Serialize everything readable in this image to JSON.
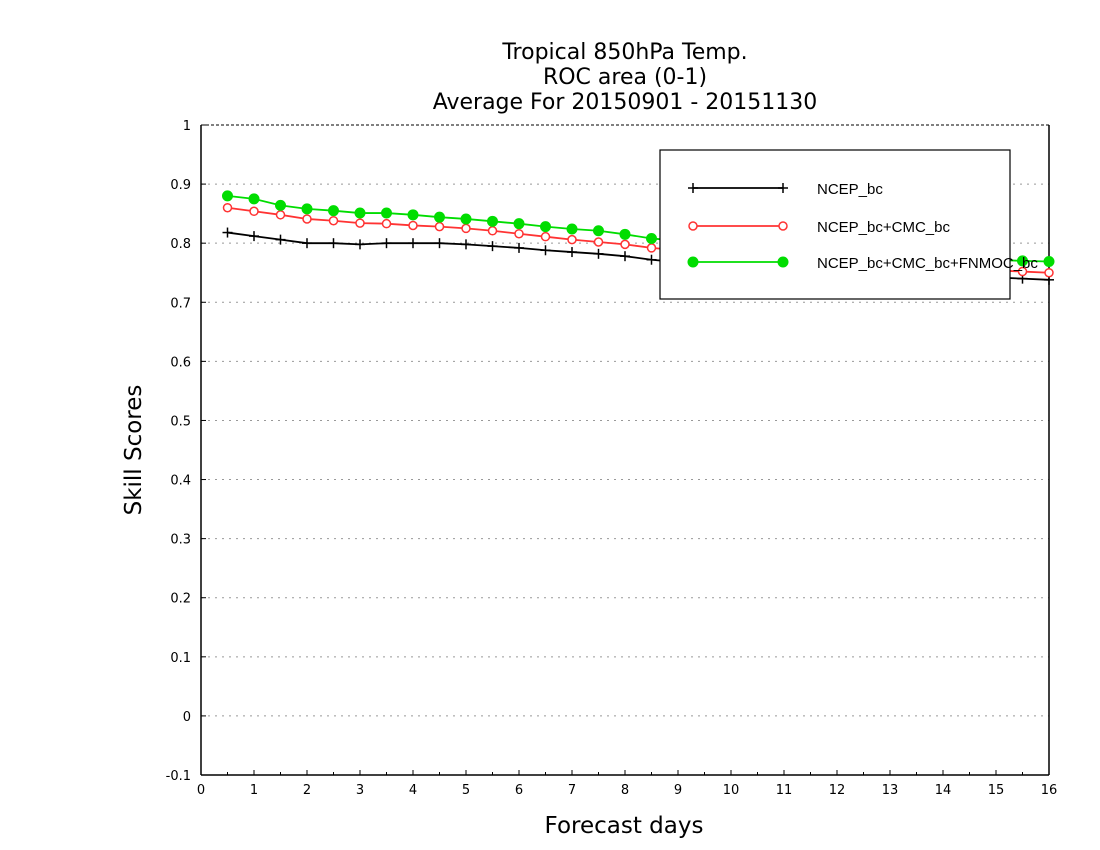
{
  "chart_data": {
    "type": "line",
    "title": [
      "Tropical 850hPa Temp.",
      "ROC area (0-1)",
      "Average For 20150901 - 20151130"
    ],
    "xlabel": "Forecast days",
    "ylabel": "Skill Scores",
    "xlim": [
      0,
      16
    ],
    "ylim": [
      -0.1,
      1
    ],
    "xticks": [
      "0",
      "1",
      "2",
      "3",
      "4",
      "5",
      "6",
      "7",
      "8",
      "9",
      "10",
      "11",
      "12",
      "13",
      "14",
      "15",
      "16"
    ],
    "yticks": [
      "-0.1",
      "0",
      "0.1",
      "0.2",
      "0.3",
      "0.4",
      "0.5",
      "0.6",
      "0.7",
      "0.8",
      "0.9",
      "1"
    ],
    "grid": "horizontal dotted",
    "legend_position": "top-right",
    "x": [
      0.5,
      1,
      1.5,
      2,
      2.5,
      3,
      3.5,
      4,
      4.5,
      5,
      5.5,
      6,
      6.5,
      7,
      7.5,
      8,
      8.5,
      9,
      9.5,
      10,
      10.5,
      11,
      11.5,
      12,
      12.5,
      13,
      13.5,
      14,
      14.5,
      15,
      15.5,
      16
    ],
    "series": [
      {
        "name": "NCEP_bc",
        "color": "#000000",
        "marker": "plus",
        "values": [
          0.818,
          0.812,
          0.806,
          0.8,
          0.8,
          0.798,
          0.8,
          0.8,
          0.8,
          0.798,
          0.795,
          0.792,
          0.788,
          0.785,
          0.782,
          0.778,
          0.772,
          0.768,
          0.765,
          0.762,
          0.76,
          0.758,
          0.756,
          0.754,
          0.752,
          0.75,
          0.748,
          0.746,
          0.744,
          0.742,
          0.74,
          0.738
        ]
      },
      {
        "name": "NCEP_bc+CMC_bc",
        "color": "#ff3333",
        "marker": "open-circle",
        "values": [
          0.86,
          0.854,
          0.848,
          0.841,
          0.838,
          0.834,
          0.833,
          0.83,
          0.828,
          0.825,
          0.821,
          0.816,
          0.811,
          0.806,
          0.802,
          0.798,
          0.792,
          0.788,
          0.784,
          0.78,
          0.777,
          0.774,
          0.771,
          0.768,
          0.765,
          0.762,
          0.76,
          0.758,
          0.756,
          0.754,
          0.752,
          0.75
        ]
      },
      {
        "name": "NCEP_bc+CMC_bc+FNMOC_bc",
        "color": "#00dd00",
        "marker": "filled-circle",
        "values": [
          0.88,
          0.875,
          0.864,
          0.858,
          0.855,
          0.851,
          0.851,
          0.848,
          0.844,
          0.841,
          0.837,
          0.833,
          0.828,
          0.824,
          0.821,
          0.815,
          0.808,
          0.804,
          0.8,
          0.796,
          0.793,
          0.79,
          0.787,
          0.784,
          0.782,
          0.78,
          0.778,
          0.776,
          0.774,
          0.772,
          0.77,
          0.769
        ]
      }
    ]
  }
}
